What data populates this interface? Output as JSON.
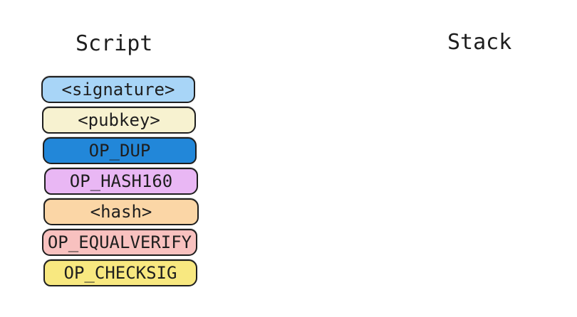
{
  "headings": {
    "script": "Script",
    "stack": "Stack"
  },
  "script": {
    "items": [
      {
        "label": "<signature>",
        "color": "#a8d5f7"
      },
      {
        "label": "<pubkey>",
        "color": "#f7f2d0"
      },
      {
        "label": "OP_DUP",
        "color": "#2287d9"
      },
      {
        "label": "OP_HASH160",
        "color": "#e9b7f4"
      },
      {
        "label": "<hash>",
        "color": "#fbd6a6"
      },
      {
        "label": "OP_EQUALVERIFY",
        "color": "#f8c1bf"
      },
      {
        "label": "OP_CHECKSIG",
        "color": "#f8e880"
      }
    ]
  },
  "stack": {
    "items": []
  },
  "diagram_colors": {
    "border": "#1e1e1e",
    "text": "#1e1e1e",
    "background": "#ffffff"
  }
}
